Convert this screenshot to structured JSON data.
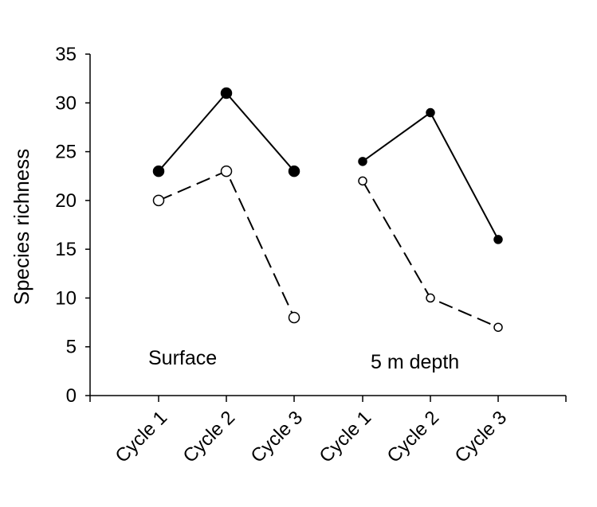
{
  "chart_data": {
    "type": "line",
    "title": "",
    "xlabel": "",
    "ylabel": "Species richness",
    "ylim": [
      0,
      35
    ],
    "yticks": [
      "0",
      "5",
      "10",
      "15",
      "20",
      "25",
      "30",
      "35"
    ],
    "categories": [
      "Cycle 1",
      "Cycle 2",
      "Cycle 3",
      "Cycle 1",
      "Cycle 2",
      "Cycle 3"
    ],
    "groups": [
      {
        "label": "Surface",
        "categories": [
          "Cycle 1",
          "Cycle 2",
          "Cycle 3"
        ],
        "series": [
          {
            "style": "solid",
            "marker": "filled",
            "values": [
              23,
              31,
              23
            ]
          },
          {
            "style": "dashed",
            "marker": "open",
            "values": [
              20,
              23,
              8
            ]
          }
        ]
      },
      {
        "label": "5 m depth",
        "categories": [
          "Cycle 1",
          "Cycle 2",
          "Cycle 3"
        ],
        "series": [
          {
            "style": "solid",
            "marker": "filled",
            "values": [
              24,
              29,
              16
            ]
          },
          {
            "style": "dashed",
            "marker": "open",
            "values": [
              22,
              10,
              7
            ]
          }
        ]
      }
    ],
    "grid": false,
    "legend": "none"
  }
}
